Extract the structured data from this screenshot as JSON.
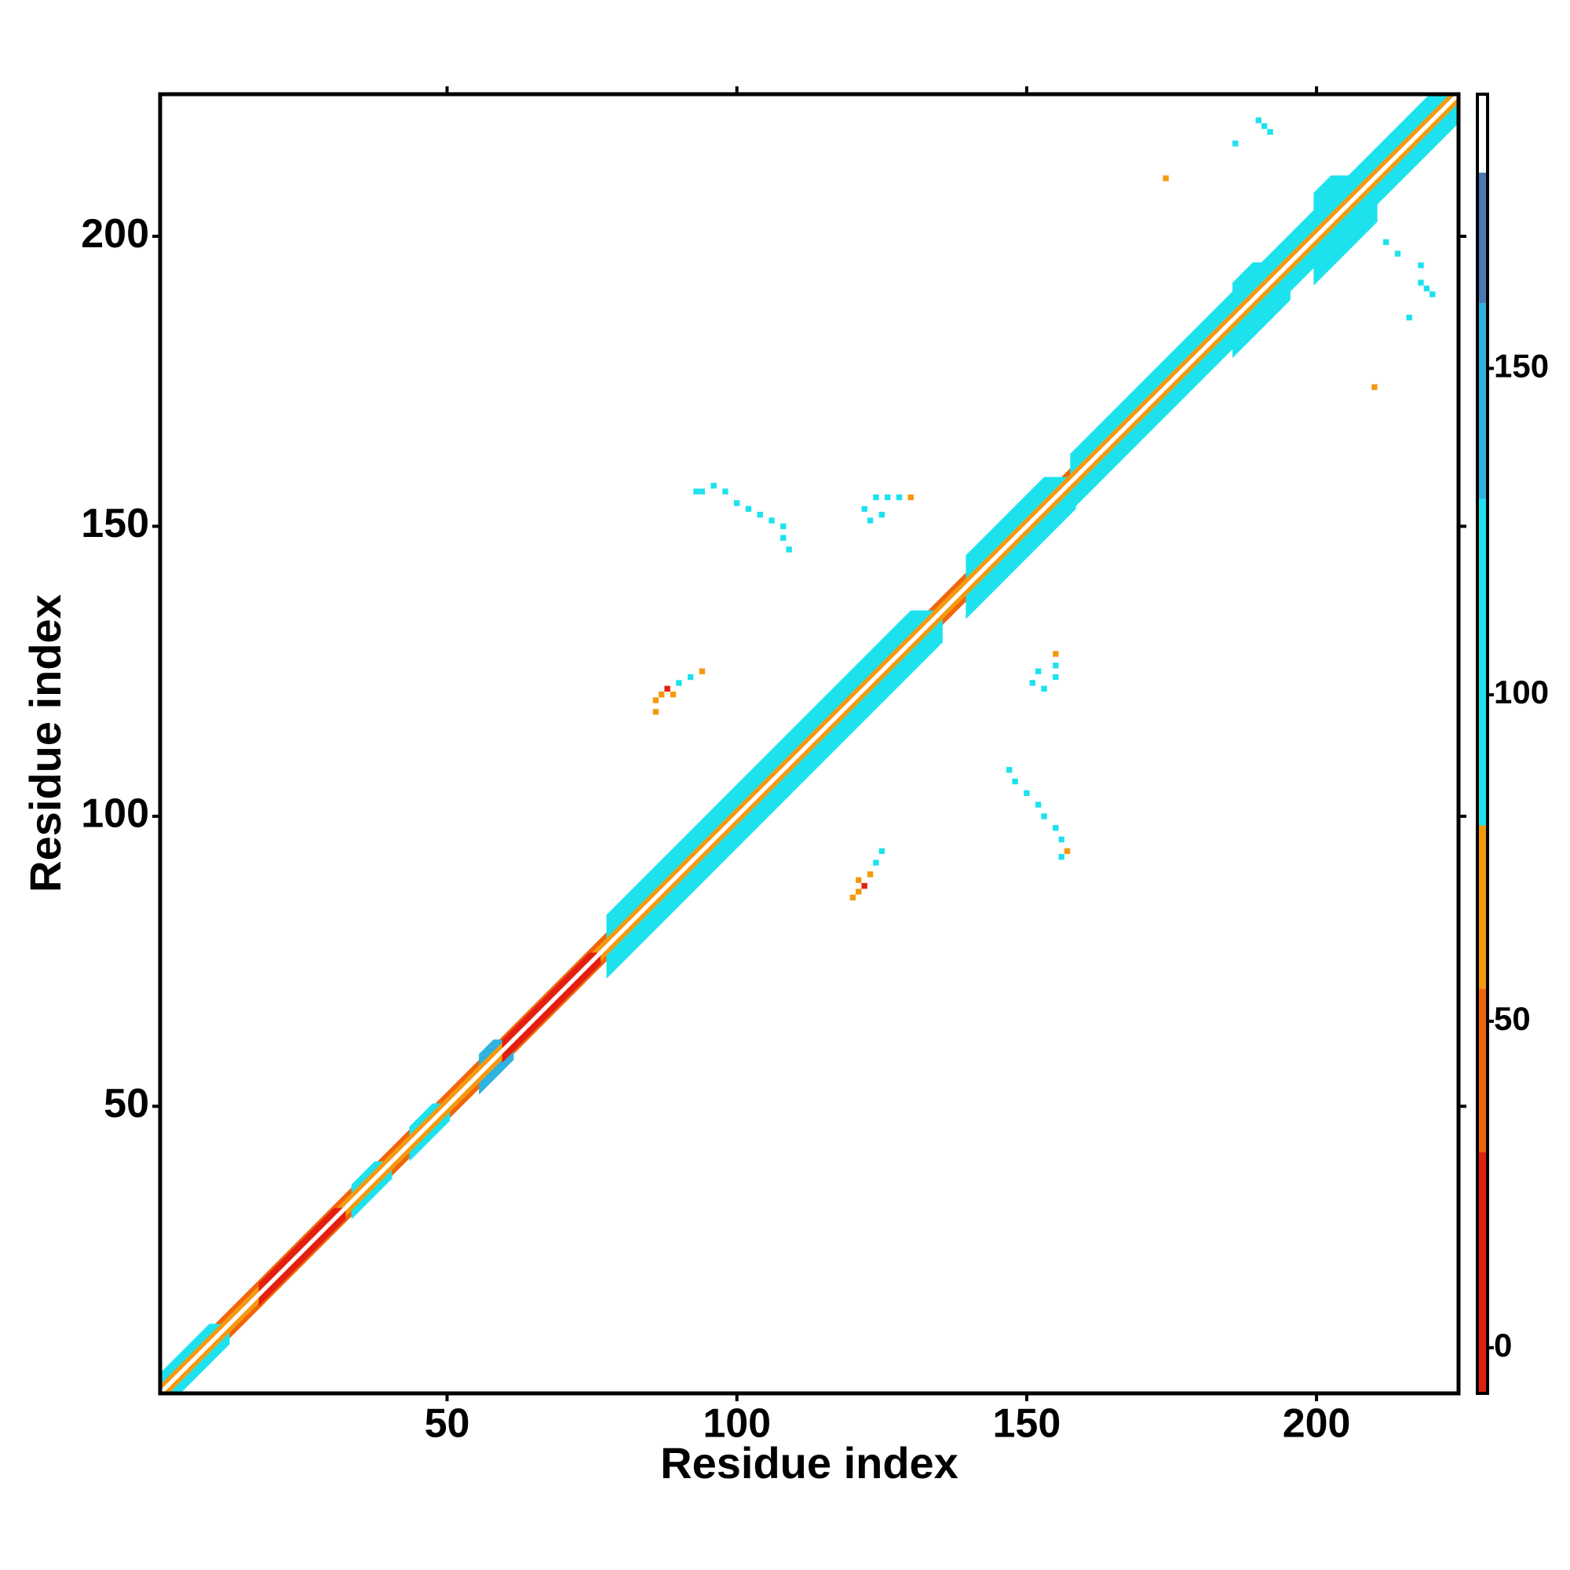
{
  "chart_data": {
    "type": "heatmap",
    "x_label": "Residue index",
    "y_label": "Residue index",
    "xlim": [
      0.5,
      224.5
    ],
    "ylim": [
      0.5,
      224.5
    ],
    "xticks": [
      50,
      100,
      150,
      200
    ],
    "yticks": [
      50,
      100,
      150,
      200
    ],
    "bands": [
      {
        "start": 1,
        "end": 224,
        "width": 2.5,
        "value": 40
      },
      {
        "start": 1,
        "end": 12,
        "width": 3.5,
        "value": 100
      },
      {
        "start": 34,
        "end": 40,
        "width": 3,
        "value": 100
      },
      {
        "start": 44,
        "end": 50,
        "width": 3,
        "value": 100
      },
      {
        "start": 56,
        "end": 61,
        "width": 3.5,
        "value": 150
      },
      {
        "start": 78,
        "end": 135,
        "width": 5.5,
        "value": 100
      },
      {
        "start": 140,
        "end": 158,
        "width": 5.5,
        "value": 100
      },
      {
        "start": 158,
        "end": 224,
        "width": 5,
        "value": 100
      },
      {
        "start": 186,
        "end": 195,
        "width": 6.5,
        "value": 100
      },
      {
        "start": 200,
        "end": 210,
        "width": 8,
        "value": 100
      },
      {
        "start": 1,
        "end": 224,
        "width": 1.5,
        "value": 60
      },
      {
        "start": 18,
        "end": 32,
        "width": 2,
        "value": 10
      },
      {
        "start": 60,
        "end": 76,
        "width": 2,
        "value": 10
      },
      {
        "start": 1,
        "end": 224,
        "width": 0.5,
        "value": 190
      }
    ],
    "contacts": {
      "x": [
        93,
        94,
        96,
        98,
        100,
        102,
        104,
        106,
        108,
        108,
        109,
        122,
        123,
        124,
        125,
        126,
        128,
        130,
        86,
        87,
        88,
        89,
        90,
        92,
        94,
        86,
        190,
        191,
        192,
        186,
        174,
        156,
        157,
        156,
        155,
        153,
        152,
        150,
        148,
        147,
        153,
        151,
        155,
        152,
        155,
        155,
        120,
        121,
        122,
        121,
        123,
        124,
        125,
        220,
        219,
        218,
        216,
        210,
        212,
        214,
        218
      ],
      "y": [
        156,
        156,
        157,
        156,
        154,
        153,
        152,
        151,
        150,
        148,
        146,
        153,
        151,
        155,
        152,
        155,
        155,
        155,
        120,
        121,
        122,
        121,
        123,
        124,
        125,
        118,
        220,
        219,
        218,
        216,
        210,
        93,
        94,
        96,
        98,
        100,
        102,
        104,
        106,
        108,
        122,
        123,
        124,
        125,
        126,
        128,
        86,
        87,
        88,
        89,
        90,
        92,
        94,
        190,
        191,
        192,
        186,
        174,
        199,
        197,
        195
      ],
      "values": [
        100,
        100,
        100,
        100,
        110,
        100,
        100,
        100,
        110,
        100,
        100,
        100,
        100,
        100,
        110,
        100,
        100,
        60,
        60,
        60,
        10,
        60,
        100,
        100,
        60,
        70,
        110,
        100,
        100,
        110,
        60,
        100,
        60,
        100,
        100,
        100,
        100,
        100,
        100,
        100,
        100,
        100,
        100,
        100,
        100,
        60,
        60,
        60,
        10,
        60,
        60,
        100,
        100,
        110,
        100,
        100,
        110,
        60,
        100,
        100,
        100
      ]
    },
    "colorbar": {
      "lim": [
        -7,
        192
      ],
      "ticks": [
        0,
        50,
        100,
        150
      ],
      "levels": [
        -7,
        30,
        55,
        80,
        130,
        160,
        180,
        192
      ],
      "colors": [
        "#e3200f",
        "#f0650a",
        "#f5990f",
        "#1de2ee",
        "#2fb2df",
        "#4a7ab2",
        "#ffffff"
      ]
    }
  }
}
